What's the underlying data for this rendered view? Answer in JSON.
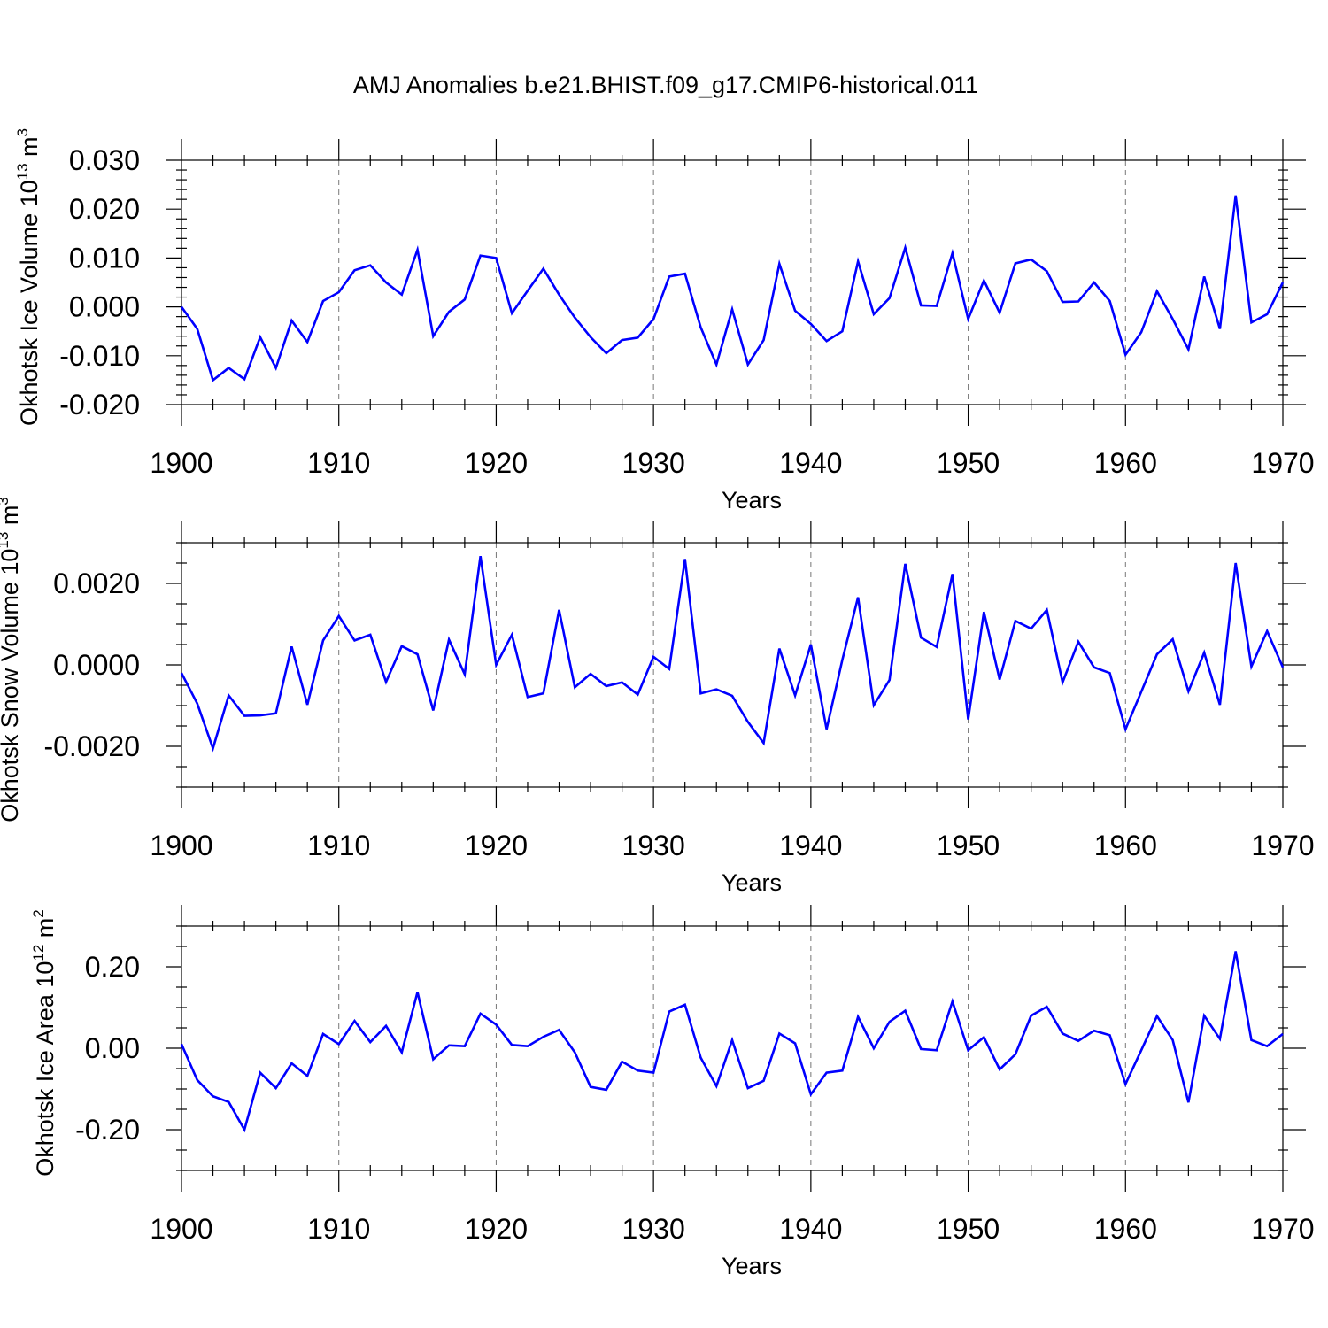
{
  "title": "AMJ Anomalies b.e21.BHIST.f09_g17.CMIP6-historical.011",
  "chart_data": [
    {
      "type": "line",
      "ylabel_main": "Okhotsk Ice Volume 10",
      "ylabel_exp": "13",
      "ylabel_unit": " m",
      "ylabel_unit_exp": "3",
      "xlabel": "Years",
      "xlim": [
        1900,
        1970
      ],
      "ylim": [
        -0.02,
        0.03
      ],
      "x_ticks": [
        1900,
        1910,
        1920,
        1930,
        1940,
        1950,
        1960,
        1970
      ],
      "x_tick_labels": [
        "1900",
        "1910",
        "1920",
        "1930",
        "1940",
        "1950",
        "1960",
        "1970"
      ],
      "y_ticks": [
        -0.02,
        -0.01,
        0.0,
        0.01,
        0.02,
        0.03
      ],
      "y_tick_labels": [
        "-0.020",
        "-0.010",
        "0.000",
        "0.010",
        "0.020",
        "0.030"
      ],
      "y_minor_step": 0.002,
      "x_minor_step": 2,
      "grid": "x-major dashed",
      "series": [
        {
          "name": "Okhotsk Ice Volume",
          "color": "#0000ff",
          "x": [
            1900,
            1901,
            1902,
            1903,
            1904,
            1905,
            1906,
            1907,
            1908,
            1909,
            1910,
            1911,
            1912,
            1913,
            1914,
            1915,
            1916,
            1917,
            1918,
            1919,
            1920,
            1921,
            1922,
            1923,
            1924,
            1925,
            1926,
            1927,
            1928,
            1929,
            1930,
            1931,
            1932,
            1933,
            1934,
            1935,
            1936,
            1937,
            1938,
            1939,
            1940,
            1941,
            1942,
            1943,
            1944,
            1945,
            1946,
            1947,
            1948,
            1949,
            1950,
            1951,
            1952,
            1953,
            1954,
            1955,
            1956,
            1957,
            1958,
            1959,
            1960,
            1961,
            1962,
            1963,
            1964,
            1965,
            1966,
            1967,
            1968,
            1969,
            1970
          ],
          "values": [
            0.0,
            -0.0045,
            -0.015,
            -0.0125,
            -0.0148,
            -0.0062,
            -0.0125,
            -0.0028,
            -0.0072,
            0.0012,
            0.003,
            0.0075,
            0.0085,
            0.005,
            0.0025,
            0.0117,
            -0.006,
            -0.001,
            0.0015,
            0.0105,
            0.01,
            -0.0013,
            0.0033,
            0.0078,
            0.0025,
            -0.0022,
            -0.0062,
            -0.0095,
            -0.0068,
            -0.0063,
            -0.0025,
            0.0062,
            0.0068,
            -0.0042,
            -0.0118,
            -0.0005,
            -0.0118,
            -0.0068,
            0.0088,
            -0.0008,
            -0.0035,
            -0.007,
            -0.005,
            0.0093,
            -0.0015,
            0.0018,
            0.0121,
            0.0003,
            0.0002,
            0.011,
            -0.0025,
            0.0054,
            -0.0012,
            0.0089,
            0.0097,
            0.0073,
            0.001,
            0.0011,
            0.005,
            0.0012,
            -0.0098,
            -0.0052,
            0.0032,
            -0.0025,
            -0.0087,
            0.0062,
            -0.0045,
            0.0228,
            -0.0032,
            -0.0015,
            0.005
          ]
        }
      ]
    },
    {
      "type": "line",
      "ylabel_main": "Okhotsk Snow Volume 10",
      "ylabel_exp": "13",
      "ylabel_unit": " m",
      "ylabel_unit_exp": "3",
      "xlabel": "Years",
      "xlim": [
        1900,
        1970
      ],
      "ylim": [
        -0.003,
        0.003
      ],
      "x_ticks": [
        1900,
        1910,
        1920,
        1930,
        1940,
        1950,
        1960,
        1970
      ],
      "x_tick_labels": [
        "1900",
        "1910",
        "1920",
        "1930",
        "1940",
        "1950",
        "1960",
        "1970"
      ],
      "y_ticks": [
        -0.002,
        0.0,
        0.002
      ],
      "y_tick_labels": [
        "-0.0020",
        "0.0000",
        "0.0020"
      ],
      "y_minor_step": 0.0005,
      "x_minor_step": 2,
      "grid": "x-major dashed",
      "series": [
        {
          "name": "Okhotsk Snow Volume",
          "color": "#0000ff",
          "x": [
            1900,
            1901,
            1902,
            1903,
            1904,
            1905,
            1906,
            1907,
            1908,
            1909,
            1910,
            1911,
            1912,
            1913,
            1914,
            1915,
            1916,
            1917,
            1918,
            1919,
            1920,
            1921,
            1922,
            1923,
            1924,
            1925,
            1926,
            1927,
            1928,
            1929,
            1930,
            1931,
            1932,
            1933,
            1934,
            1935,
            1936,
            1937,
            1938,
            1939,
            1940,
            1941,
            1942,
            1943,
            1944,
            1945,
            1946,
            1947,
            1948,
            1949,
            1950,
            1951,
            1952,
            1953,
            1954,
            1955,
            1956,
            1957,
            1958,
            1959,
            1960,
            1961,
            1962,
            1963,
            1964,
            1965,
            1966,
            1967,
            1968,
            1969,
            1970
          ],
          "values": [
            -0.0002,
            -0.00095,
            -0.00205,
            -0.00075,
            -0.00125,
            -0.00124,
            -0.00119,
            0.00045,
            -0.00098,
            0.0006,
            0.0012,
            0.0006,
            0.00074,
            -0.00042,
            0.00046,
            0.00026,
            -0.00112,
            0.00062,
            -0.00023,
            0.00267,
            0.0,
            0.00074,
            -0.00079,
            -0.0007,
            0.00135,
            -0.00055,
            -0.00022,
            -0.00052,
            -0.00043,
            -0.00073,
            0.0002,
            -0.0001,
            0.0026,
            -0.0007,
            -0.0006,
            -0.00076,
            -0.0014,
            -0.00192,
            0.0004,
            -0.00075,
            0.0005,
            -0.00158,
            0.00012,
            0.00166,
            -0.00099,
            -0.00037,
            0.00248,
            0.00067,
            0.00044,
            0.00223,
            -0.00134,
            0.0013,
            -0.00036,
            0.00108,
            0.00089,
            0.00135,
            -0.00043,
            0.00057,
            -6e-05,
            -0.0002,
            -0.00158,
            -0.00066,
            0.00026,
            0.00063,
            -0.00065,
            0.0003,
            -0.00098,
            0.0025,
            -4e-05,
            0.00083,
            -6e-05
          ]
        }
      ]
    },
    {
      "type": "line",
      "ylabel_main": "Okhotsk Ice Area 10",
      "ylabel_exp": "12",
      "ylabel_unit": " m",
      "ylabel_unit_exp": "2",
      "xlabel": "Years",
      "xlim": [
        1900,
        1970
      ],
      "ylim": [
        -0.3,
        0.3
      ],
      "x_ticks": [
        1900,
        1910,
        1920,
        1930,
        1940,
        1950,
        1960,
        1970
      ],
      "x_tick_labels": [
        "1900",
        "1910",
        "1920",
        "1930",
        "1940",
        "1950",
        "1960",
        "1970"
      ],
      "y_ticks": [
        -0.2,
        0.0,
        0.2
      ],
      "y_tick_labels": [
        "-0.20",
        "0.00",
        "0.20"
      ],
      "y_minor_step": 0.05,
      "x_minor_step": 2,
      "grid": "x-major dashed",
      "series": [
        {
          "name": "Okhotsk Ice Area",
          "color": "#0000ff",
          "x": [
            1900,
            1901,
            1902,
            1903,
            1904,
            1905,
            1906,
            1907,
            1908,
            1909,
            1910,
            1911,
            1912,
            1913,
            1914,
            1915,
            1916,
            1917,
            1918,
            1919,
            1920,
            1921,
            1922,
            1923,
            1924,
            1925,
            1926,
            1927,
            1928,
            1929,
            1930,
            1931,
            1932,
            1933,
            1934,
            1935,
            1936,
            1937,
            1938,
            1939,
            1940,
            1941,
            1942,
            1943,
            1944,
            1945,
            1946,
            1947,
            1948,
            1949,
            1950,
            1951,
            1952,
            1953,
            1954,
            1955,
            1956,
            1957,
            1958,
            1959,
            1960,
            1961,
            1962,
            1963,
            1964,
            1965,
            1966,
            1967,
            1968,
            1969,
            1970
          ],
          "values": [
            0.01,
            -0.078,
            -0.118,
            -0.132,
            -0.2,
            -0.06,
            -0.098,
            -0.037,
            -0.068,
            0.035,
            0.01,
            0.067,
            0.015,
            0.055,
            -0.01,
            0.138,
            -0.027,
            0.007,
            0.005,
            0.085,
            0.058,
            0.008,
            0.005,
            0.028,
            0.045,
            -0.01,
            -0.095,
            -0.102,
            -0.033,
            -0.055,
            -0.06,
            0.09,
            0.107,
            -0.023,
            -0.093,
            0.02,
            -0.098,
            -0.08,
            0.036,
            0.012,
            -0.113,
            -0.06,
            -0.055,
            0.077,
            0.0,
            0.065,
            0.092,
            -0.002,
            -0.005,
            0.115,
            -0.005,
            0.027,
            -0.052,
            -0.015,
            0.08,
            0.102,
            0.036,
            0.018,
            0.043,
            0.032,
            -0.088,
            -0.005,
            0.079,
            0.02,
            -0.133,
            0.08,
            0.023,
            0.238,
            0.02,
            0.005,
            0.035
          ]
        }
      ]
    }
  ]
}
